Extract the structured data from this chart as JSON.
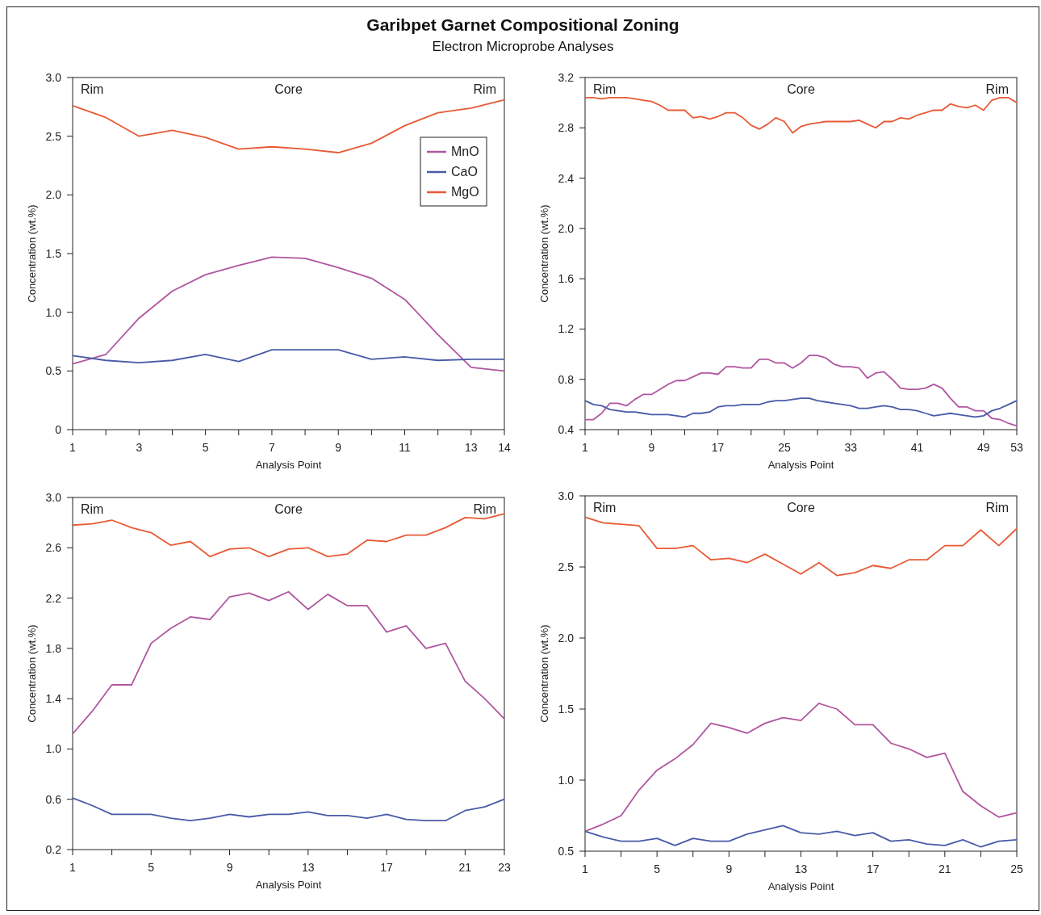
{
  "chart_data": [
    {
      "type": "line",
      "title": "Garibpet Garnet Compositional Zoning",
      "subtitle": "Electron Microprobe Analyses",
      "xlabel": "Analysis Point",
      "ylabel": "Concentration (wt.%)",
      "annotations": [
        "Rim",
        "Core",
        "Rim"
      ],
      "legend": "top right",
      "x": [
        1,
        2,
        3,
        4,
        5,
        6,
        7,
        8,
        9,
        10,
        11,
        12,
        13,
        14
      ],
      "xlim": [
        1,
        14
      ],
      "xticks": [
        1,
        {
          "value": 2,
          "label": null
        },
        3,
        {
          "value": 4,
          "label": null
        },
        5,
        {
          "value": 6,
          "label": null
        },
        7,
        {
          "value": 8,
          "label": null
        },
        9,
        {
          "value": 10,
          "label": null
        },
        11,
        {
          "value": 12,
          "label": null
        },
        13,
        14
      ],
      "ylim": [
        0,
        3
      ],
      "yticks": [
        0,
        0.5,
        {
          "value": 1,
          "label": "1.0"
        },
        1.5,
        {
          "value": 2,
          "label": "2.0"
        },
        2.5,
        {
          "value": 3,
          "label": "3.0"
        }
      ],
      "series": [
        {
          "name": "MnO",
          "color": "#b0569f",
          "values": [
            0.56,
            0.64,
            0.95,
            1.18,
            1.32,
            1.4,
            1.47,
            1.46,
            1.38,
            1.29,
            1.11,
            0.81,
            0.53,
            0.5
          ]
        },
        {
          "name": "CaO",
          "color": "#4a5aa8",
          "values": [
            0.63,
            0.59,
            0.57,
            0.59,
            0.64,
            0.58,
            0.68,
            0.68,
            0.68,
            0.6,
            0.62,
            0.59,
            0.6,
            0.6
          ]
        },
        {
          "name": "MgO",
          "color": "#e85a35",
          "values": [
            2.76,
            2.66,
            2.5,
            2.55,
            2.49,
            2.39,
            2.41,
            2.39,
            2.36,
            2.44,
            2.59,
            2.7,
            2.74,
            2.81
          ]
        }
      ]
    },
    {
      "type": "line",
      "xlabel": "Analysis Point",
      "ylabel": "Concentration (wt.%)",
      "annotations": [
        "Rim",
        "Core",
        "Rim"
      ],
      "x": [
        1,
        2,
        3,
        4,
        5,
        6,
        7,
        8,
        9,
        10,
        11,
        12,
        13,
        14,
        15,
        16,
        17,
        18,
        19,
        20,
        21,
        22,
        23,
        24,
        25,
        26,
        27,
        28,
        29,
        30,
        31,
        32,
        33,
        34,
        35,
        36,
        37,
        38,
        39,
        40,
        41,
        42,
        43,
        44,
        45,
        46,
        47,
        48,
        49,
        50,
        51,
        52,
        53
      ],
      "xlim": [
        1,
        53
      ],
      "xticks": [
        1,
        {
          "value": 5,
          "label": null
        },
        9,
        {
          "value": 13,
          "label": null
        },
        17,
        {
          "value": 21,
          "label": null
        },
        25,
        {
          "value": 29,
          "label": null
        },
        33,
        {
          "value": 37,
          "label": null
        },
        41,
        {
          "value": 45,
          "label": null
        },
        49,
        53
      ],
      "ylim": [
        0.4,
        3.2
      ],
      "yticks": [
        0.4,
        0.8,
        1.2,
        1.6,
        {
          "value": 2,
          "label": "2.0"
        },
        2.4,
        2.8,
        3.2
      ],
      "series": [
        {
          "color": "#b0569f",
          "values": [
            0.48,
            0.48,
            0.53,
            0.61,
            0.61,
            0.59,
            0.64,
            0.68,
            0.68,
            0.72,
            0.76,
            0.79,
            0.79,
            0.82,
            0.85,
            0.85,
            0.84,
            0.9,
            0.9,
            0.89,
            0.89,
            0.96,
            0.96,
            0.93,
            0.93,
            0.89,
            0.93,
            0.99,
            0.99,
            0.97,
            0.92,
            0.9,
            0.9,
            0.89,
            0.81,
            0.85,
            0.86,
            0.8,
            0.73,
            0.72,
            0.72,
            0.73,
            0.76,
            0.73,
            0.65,
            0.58,
            0.58,
            0.55,
            0.55,
            0.49,
            0.48,
            0.45,
            0.43
          ]
        },
        {
          "color": "#4a5aa8",
          "values": [
            0.63,
            0.6,
            0.59,
            0.56,
            0.55,
            0.54,
            0.54,
            0.53,
            0.52,
            0.52,
            0.52,
            0.51,
            0.5,
            0.53,
            0.53,
            0.54,
            0.58,
            0.59,
            0.59,
            0.6,
            0.6,
            0.6,
            0.62,
            0.63,
            0.63,
            0.64,
            0.65,
            0.65,
            0.63,
            0.62,
            0.61,
            0.6,
            0.59,
            0.57,
            0.57,
            0.58,
            0.59,
            0.58,
            0.56,
            0.56,
            0.55,
            0.53,
            0.51,
            0.52,
            0.53,
            0.52,
            0.51,
            0.5,
            0.51,
            0.55,
            0.57,
            0.6,
            0.63
          ]
        },
        {
          "color": "#e85a35",
          "values": [
            3.04,
            3.04,
            3.03,
            3.04,
            3.04,
            3.04,
            3.03,
            3.02,
            3.01,
            2.98,
            2.94,
            2.94,
            2.94,
            2.88,
            2.89,
            2.87,
            2.89,
            2.92,
            2.92,
            2.88,
            2.82,
            2.79,
            2.83,
            2.88,
            2.85,
            2.76,
            2.81,
            2.83,
            2.84,
            2.85,
            2.85,
            2.85,
            2.85,
            2.86,
            2.83,
            2.8,
            2.85,
            2.85,
            2.88,
            2.87,
            2.9,
            2.92,
            2.94,
            2.94,
            2.99,
            2.97,
            2.96,
            2.98,
            2.94,
            3.02,
            3.04,
            3.04,
            3.0
          ]
        }
      ]
    },
    {
      "type": "line",
      "xlabel": "Analysis Point",
      "ylabel": "Concentration (wt.%)",
      "annotations": [
        "Rim",
        "Core",
        "Rim"
      ],
      "x": [
        1,
        2,
        3,
        4,
        5,
        6,
        7,
        8,
        9,
        10,
        11,
        12,
        13,
        14,
        15,
        16,
        17,
        18,
        19,
        20,
        21,
        22,
        23
      ],
      "xlim": [
        1,
        23
      ],
      "xticks": [
        1,
        {
          "value": 3,
          "label": null
        },
        5,
        {
          "value": 7,
          "label": null
        },
        9,
        {
          "value": 11,
          "label": null
        },
        13,
        {
          "value": 15,
          "label": null
        },
        17,
        {
          "value": 19,
          "label": null
        },
        21,
        23
      ],
      "ylim": [
        0.2,
        3
      ],
      "yticks": [
        0.2,
        0.6,
        {
          "value": 1,
          "label": "1.0"
        },
        1.4,
        1.8,
        2.2,
        2.6,
        {
          "value": 3,
          "label": "3.0"
        }
      ],
      "series": [
        {
          "color": "#b0569f",
          "values": [
            1.12,
            1.3,
            1.51,
            1.51,
            1.84,
            1.96,
            2.05,
            2.03,
            2.21,
            2.24,
            2.18,
            2.25,
            2.11,
            2.23,
            2.14,
            2.14,
            1.93,
            1.98,
            1.8,
            1.84,
            1.54,
            1.4,
            1.24
          ]
        },
        {
          "color": "#4a5aa8",
          "values": [
            0.61,
            0.55,
            0.48,
            0.48,
            0.48,
            0.45,
            0.43,
            0.45,
            0.48,
            0.46,
            0.48,
            0.48,
            0.5,
            0.47,
            0.47,
            0.45,
            0.48,
            0.44,
            0.43,
            0.43,
            0.51,
            0.54,
            0.6
          ]
        },
        {
          "color": "#e85a35",
          "values": [
            2.78,
            2.79,
            2.82,
            2.76,
            2.72,
            2.62,
            2.65,
            2.53,
            2.59,
            2.6,
            2.53,
            2.59,
            2.6,
            2.53,
            2.55,
            2.66,
            2.65,
            2.7,
            2.7,
            2.76,
            2.84,
            2.83,
            2.87
          ]
        }
      ]
    },
    {
      "type": "line",
      "xlabel": "Analysis Point",
      "ylabel": "Concentration (wt.%)",
      "annotations": [
        "Rim",
        "Core",
        "Rim"
      ],
      "x": [
        1,
        2,
        3,
        4,
        5,
        6,
        7,
        8,
        9,
        10,
        11,
        12,
        13,
        14,
        15,
        16,
        17,
        18,
        19,
        20,
        21,
        22,
        23,
        24,
        25
      ],
      "xlim": [
        1,
        25
      ],
      "xticks": [
        1,
        {
          "value": 3,
          "label": null
        },
        5,
        {
          "value": 7,
          "label": null
        },
        9,
        {
          "value": 11,
          "label": null
        },
        13,
        {
          "value": 15,
          "label": null
        },
        17,
        {
          "value": 19,
          "label": null
        },
        21,
        {
          "value": 23,
          "label": null
        },
        25
      ],
      "ylim": [
        0.5,
        3
      ],
      "yticks": [
        0.5,
        {
          "value": 1,
          "label": "1.0"
        },
        1.5,
        {
          "value": 2,
          "label": "2.0"
        },
        2.5,
        {
          "value": 3,
          "label": "3.0"
        }
      ],
      "series": [
        {
          "color": "#b0569f",
          "values": [
            0.64,
            0.69,
            0.75,
            0.93,
            1.07,
            1.15,
            1.25,
            1.4,
            1.37,
            1.33,
            1.4,
            1.44,
            1.42,
            1.54,
            1.5,
            1.39,
            1.39,
            1.26,
            1.22,
            1.16,
            1.19,
            0.92,
            0.82,
            0.74,
            0.77
          ]
        },
        {
          "color": "#4a5aa8",
          "values": [
            0.64,
            0.6,
            0.57,
            0.57,
            0.59,
            0.54,
            0.59,
            0.57,
            0.57,
            0.62,
            0.65,
            0.68,
            0.63,
            0.62,
            0.64,
            0.61,
            0.63,
            0.57,
            0.58,
            0.55,
            0.54,
            0.58,
            0.53,
            0.57,
            0.58
          ]
        },
        {
          "color": "#e85a35",
          "values": [
            2.85,
            2.81,
            2.8,
            2.79,
            2.63,
            2.63,
            2.65,
            2.55,
            2.56,
            2.53,
            2.59,
            2.52,
            2.45,
            2.53,
            2.44,
            2.46,
            2.51,
            2.49,
            2.55,
            2.55,
            2.65,
            2.65,
            2.76,
            2.65,
            2.77
          ]
        }
      ]
    }
  ]
}
